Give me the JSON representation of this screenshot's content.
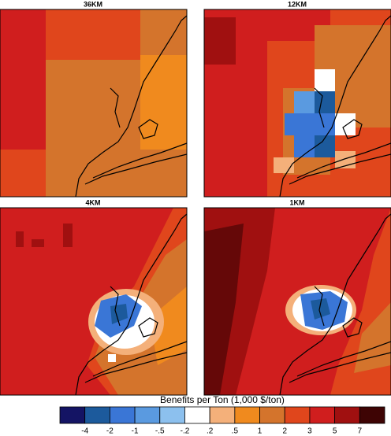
{
  "panels": [
    {
      "title": "36KM"
    },
    {
      "title": "12KM"
    },
    {
      "title": "4KM"
    },
    {
      "title": "1KM"
    }
  ],
  "colorbar": {
    "label": "Benefits per Ton (1,000 $/ton)",
    "ticks": [
      "-4",
      "-2",
      "-1",
      "-.5",
      "-.2",
      ".2",
      ".5",
      "1",
      "2",
      "3",
      "5",
      "7"
    ],
    "colors": [
      "#141464",
      "#1c5a9c",
      "#3a76d6",
      "#5a9ae0",
      "#8cc0ee",
      "#ffffff",
      "#f4b07a",
      "#f08a1e",
      "#d4742c",
      "#e0461c",
      "#d01e1e",
      "#a01010",
      "#3e0404"
    ]
  }
}
